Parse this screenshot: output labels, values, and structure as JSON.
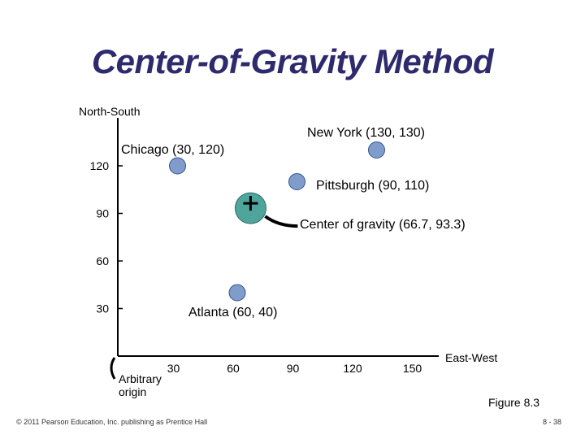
{
  "slide": {
    "title": "Center-of-Gravity Method",
    "figure_label": "Figure 8.3",
    "footer": "© 2011 Pearson Education, Inc. publishing as Prentice Hall",
    "page_number": "8 - 38"
  },
  "chart_data": {
    "type": "scatter",
    "xlabel": "East-West",
    "ylabel": "North-South",
    "origin_label": "Arbitrary origin",
    "x_ticks": [
      30,
      60,
      90,
      120,
      150
    ],
    "y_ticks": [
      30,
      60,
      90,
      120
    ],
    "points": [
      {
        "name": "Chicago",
        "x": 30,
        "y": 120,
        "label": "Chicago (30, 120)"
      },
      {
        "name": "New York",
        "x": 130,
        "y": 130,
        "label": "New York (130, 130)"
      },
      {
        "name": "Pittsburgh",
        "x": 90,
        "y": 110,
        "label": "Pittsburgh (90, 110)"
      },
      {
        "name": "Atlanta",
        "x": 60,
        "y": 40,
        "label": "Atlanta (60, 40)"
      }
    ],
    "center_of_gravity": {
      "x": 66.7,
      "y": 93.3,
      "label": "Center of gravity (66.7, 93.3)"
    },
    "colors": {
      "marker": "#7f9ccb",
      "marker_edge": "#34558a",
      "center": "#4fa59c",
      "axis": "#000000"
    }
  }
}
